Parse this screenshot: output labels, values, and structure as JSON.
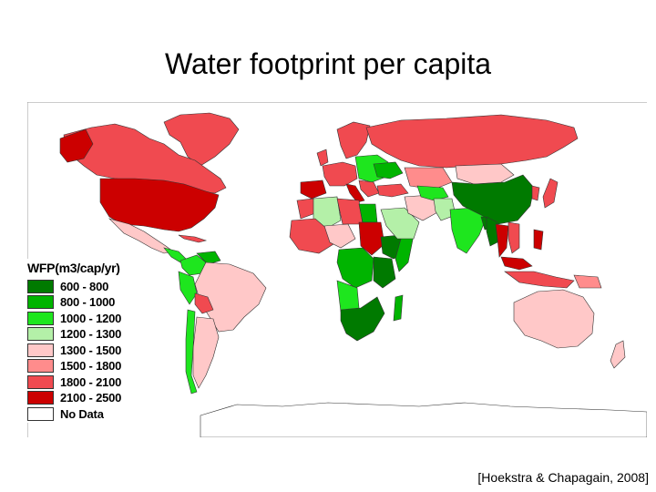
{
  "title": "Water footprint per capita",
  "citation": "[Hoekstra & Chapagain, 2008]",
  "legend": {
    "title": "WFP(m3/cap/yr)",
    "items": [
      {
        "label": "600 - 800",
        "color": "#007a00"
      },
      {
        "label": "800 - 1000",
        "color": "#00b400"
      },
      {
        "label": "1000 - 1200",
        "color": "#1ee61e"
      },
      {
        "label": "1200 - 1300",
        "color": "#b4f0a8"
      },
      {
        "label": "1300 - 1500",
        "color": "#ffc8c8"
      },
      {
        "label": "1500 - 1800",
        "color": "#ff8c8c"
      },
      {
        "label": "1800 - 2100",
        "color": "#f04a50"
      },
      {
        "label": "2100 - 2500",
        "color": "#cc0000"
      },
      {
        "label": "No Data",
        "color": "#ffffff"
      }
    ]
  }
}
